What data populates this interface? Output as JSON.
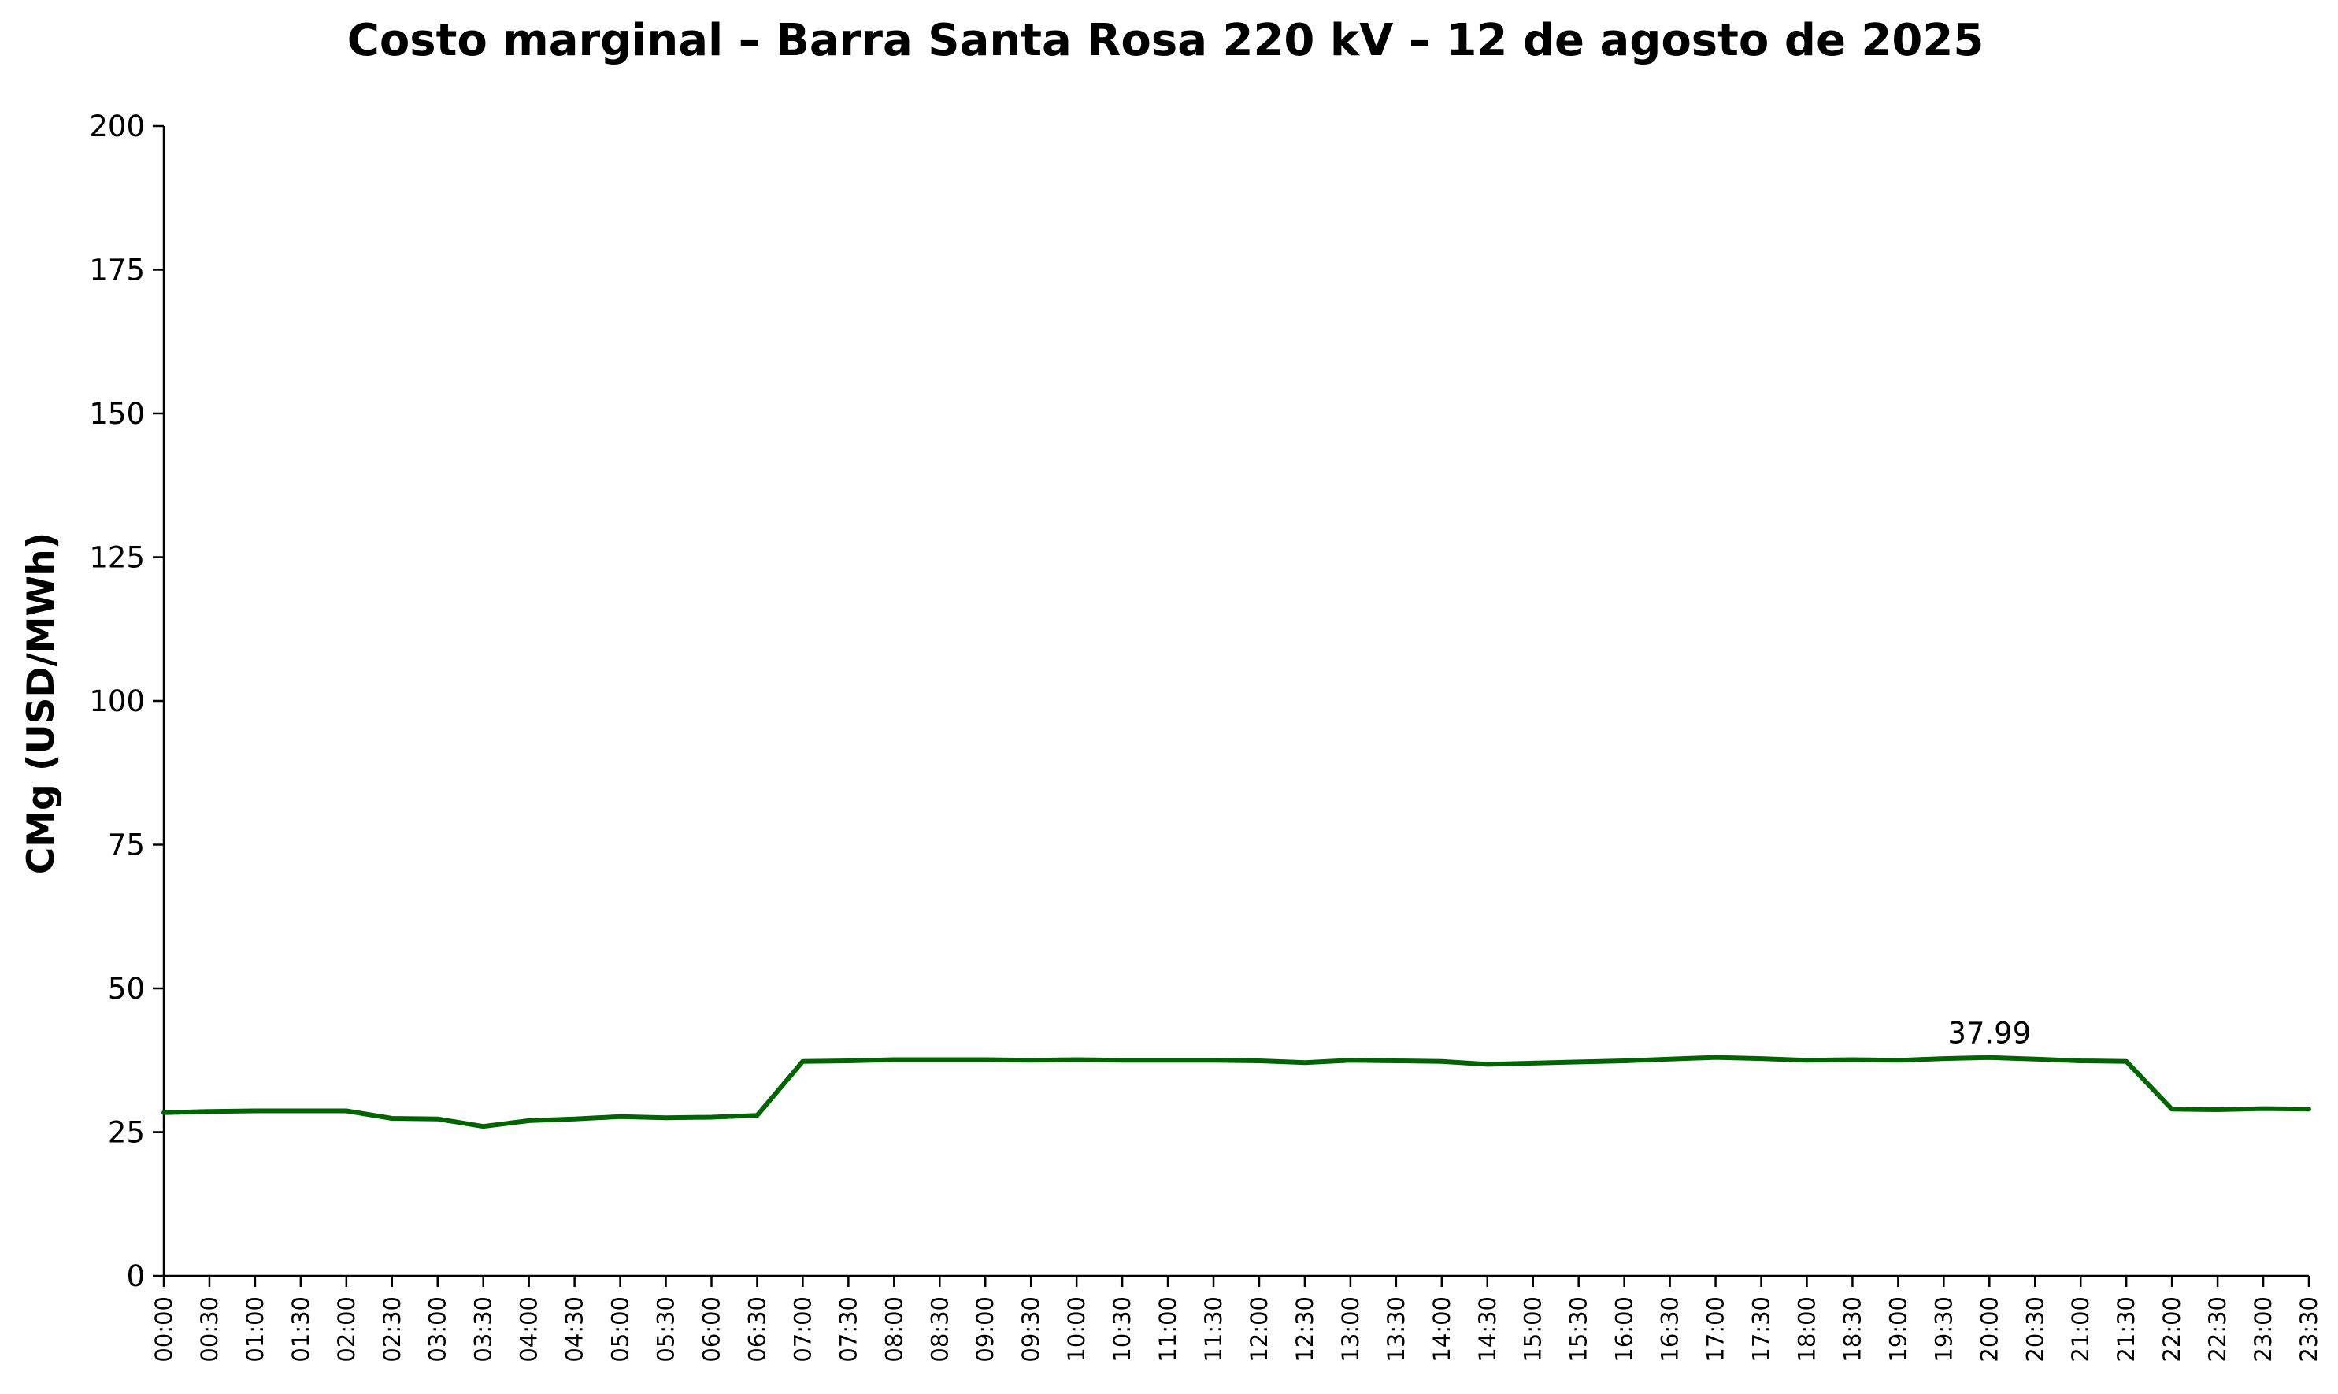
{
  "chart_data": {
    "type": "line",
    "title": "Costo marginal – Barra Santa Rosa 220 kV – 12 de agosto de 2025",
    "xlabel": "",
    "ylabel": "CMg (USD/MWh)",
    "ylim": [
      0,
      200
    ],
    "yticks": [
      0,
      25,
      50,
      75,
      100,
      125,
      150,
      175,
      200
    ],
    "grid": false,
    "legend": "none",
    "x": [
      "00:00",
      "00:30",
      "01:00",
      "01:30",
      "02:00",
      "02:30",
      "03:00",
      "03:30",
      "04:00",
      "04:30",
      "05:00",
      "05:30",
      "06:00",
      "06:30",
      "07:00",
      "07:30",
      "08:00",
      "08:30",
      "09:00",
      "09:30",
      "10:00",
      "10:30",
      "11:00",
      "11:30",
      "12:00",
      "12:30",
      "13:00",
      "13:30",
      "14:00",
      "14:30",
      "15:00",
      "15:30",
      "16:00",
      "16:30",
      "17:00",
      "17:30",
      "18:00",
      "18:30",
      "19:00",
      "19:30",
      "20:00",
      "20:30",
      "21:00",
      "21:30",
      "22:00",
      "22:30",
      "23:00",
      "23:30"
    ],
    "series": [
      {
        "color": "#006400",
        "values": [
          28.4,
          28.6,
          28.7,
          28.7,
          28.7,
          27.4,
          27.3,
          26.0,
          27.0,
          27.3,
          27.7,
          27.5,
          27.6,
          27.9,
          37.3,
          37.4,
          37.6,
          37.6,
          37.6,
          37.5,
          37.6,
          37.5,
          37.5,
          37.5,
          37.4,
          37.1,
          37.5,
          37.4,
          37.3,
          36.8,
          37.0,
          37.2,
          37.4,
          37.7,
          38.0,
          37.8,
          37.5,
          37.6,
          37.5,
          37.8,
          37.99,
          37.7,
          37.4,
          37.3,
          29.0,
          28.9,
          29.1,
          29.0
        ]
      }
    ],
    "annotations": [
      {
        "x": "20:00",
        "y": 37.99,
        "text": "37.99"
      }
    ]
  }
}
